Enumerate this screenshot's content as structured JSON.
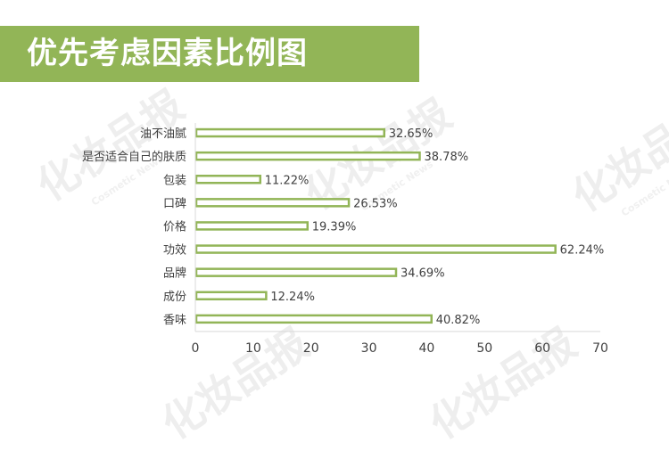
{
  "title": "优先考虑因素比例图",
  "watermark": {
    "text": "化妆品报",
    "subtext": "Cosmetic News"
  },
  "colors": {
    "accent": "#92b557",
    "bar_stroke": "#92b557",
    "bar_fill": "#ffffff",
    "label_text": "#404040",
    "axis_line": "#d9d9d9"
  },
  "chart_data": {
    "type": "bar",
    "orientation": "horizontal",
    "categories": [
      "油不油腻",
      "是否适合自己的肤质",
      "包装",
      "口碑",
      "价格",
      "功效",
      "品牌",
      "成份",
      "香味"
    ],
    "values": [
      32.65,
      38.78,
      11.22,
      26.53,
      19.39,
      62.24,
      34.69,
      12.24,
      40.82
    ],
    "data_labels": [
      "32.65%",
      "38.78%",
      "11.22%",
      "26.53%",
      "19.39%",
      "62.24%",
      "34.69%",
      "12.24%",
      "40.82%"
    ],
    "xlim": [
      0,
      70
    ],
    "xticks": [
      0,
      10,
      20,
      30,
      40,
      50,
      60,
      70
    ],
    "xlabel": "",
    "ylabel": "",
    "grid": false,
    "legend": "none"
  }
}
